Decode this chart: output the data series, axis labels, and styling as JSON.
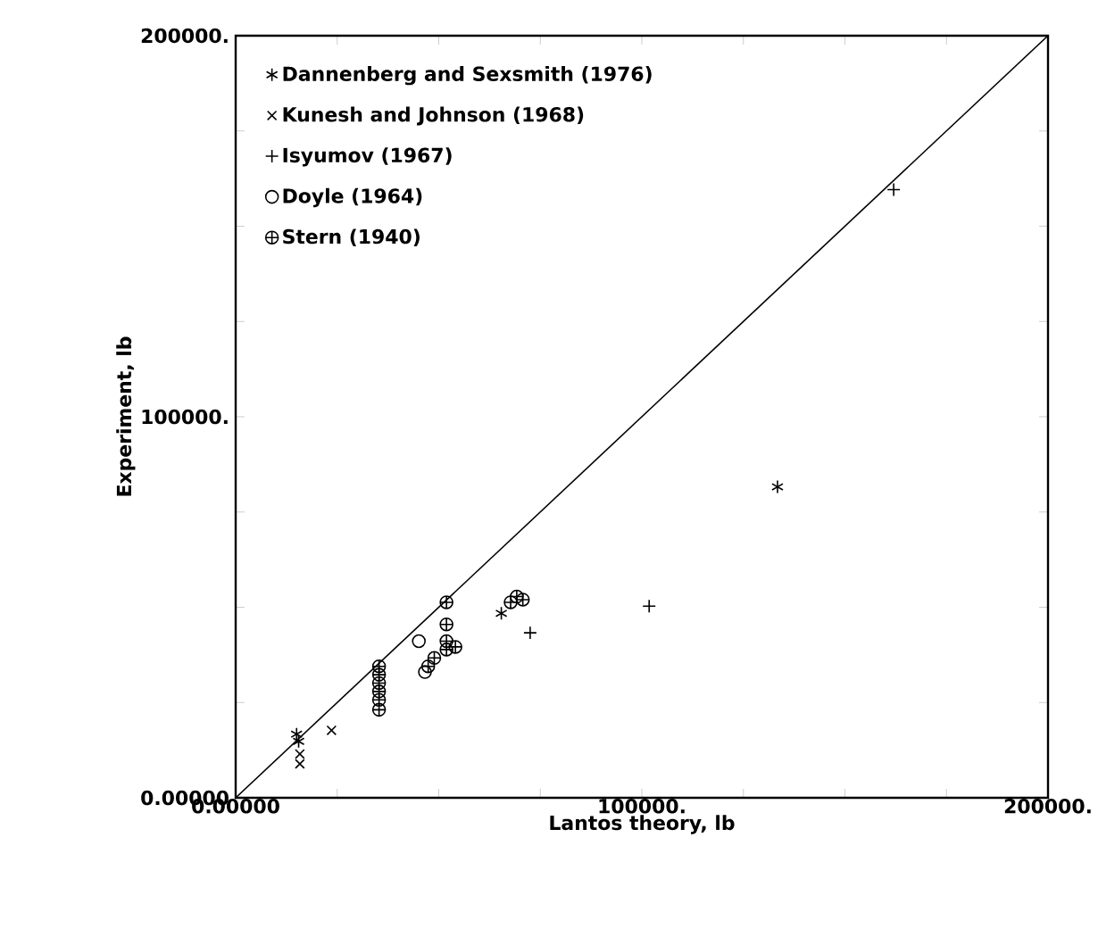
{
  "chart_data": {
    "type": "scatter",
    "xlabel": "Lantos theory, lb",
    "ylabel": "Experiment, lb",
    "xlim": [
      0,
      200000
    ],
    "ylim": [
      0,
      200000
    ],
    "xticks": [
      {
        "value": 0,
        "label": "0.00000"
      },
      {
        "value": 25000,
        "label": null
      },
      {
        "value": 50000,
        "label": null
      },
      {
        "value": 75000,
        "label": null
      },
      {
        "value": 100000,
        "label": "100000."
      },
      {
        "value": 125000,
        "label": null
      },
      {
        "value": 150000,
        "label": null
      },
      {
        "value": 175000,
        "label": null
      },
      {
        "value": 200000,
        "label": "200000."
      }
    ],
    "yticks": [
      {
        "value": 0,
        "label": "0.00000"
      },
      {
        "value": 25000,
        "label": null
      },
      {
        "value": 50000,
        "label": null
      },
      {
        "value": 75000,
        "label": null
      },
      {
        "value": 100000,
        "label": "100000."
      },
      {
        "value": 125000,
        "label": null
      },
      {
        "value": 150000,
        "label": null
      },
      {
        "value": 175000,
        "label": null
      },
      {
        "value": 200000,
        "label": "200000."
      }
    ],
    "legend": "top left",
    "grid": false,
    "series": [
      {
        "name": "Dannenberg and Sexsmith (1976)",
        "color": "#000000",
        "x": [
          15000,
          15500,
          65400,
          133400
        ],
        "values": [
          16700,
          14800,
          48400,
          81600
        ]
      },
      {
        "name": "Kunesh and Johnson (1968)",
        "color": "#000000",
        "marker": "cross",
        "x": [
          23600,
          15800,
          15800
        ],
        "values": [
          17700,
          8900,
          11500
        ]
      },
      {
        "name": "Isyumov (1967)",
        "color": "#000000",
        "x": [
          101800,
          72500,
          162000
        ],
        "values": [
          50300,
          43300,
          159600
        ]
      },
      {
        "name": "Doyle (1964)",
        "color": "#000000",
        "marker": "circle",
        "x": [
          45100,
          46600
        ],
        "values": [
          41100,
          33000
        ]
      },
      {
        "name": "Stern (1940)",
        "color": "#000000",
        "x": [
          35300,
          35300,
          35300,
          35300,
          35300,
          35300,
          51900,
          51900,
          51900,
          51900,
          54100,
          48900,
          47400,
          69200,
          70700,
          67700
        ],
        "values": [
          34500,
          32300,
          30100,
          27900,
          25700,
          23100,
          51300,
          45500,
          41100,
          38900,
          39600,
          36700,
          34500,
          52800,
          52000,
          51300
        ]
      },
      {
        "type": "line",
        "color": "#000000",
        "marker": "none",
        "line_style": "solid",
        "x": [
          0,
          200000
        ],
        "values": [
          0,
          200000
        ]
      }
    ]
  }
}
